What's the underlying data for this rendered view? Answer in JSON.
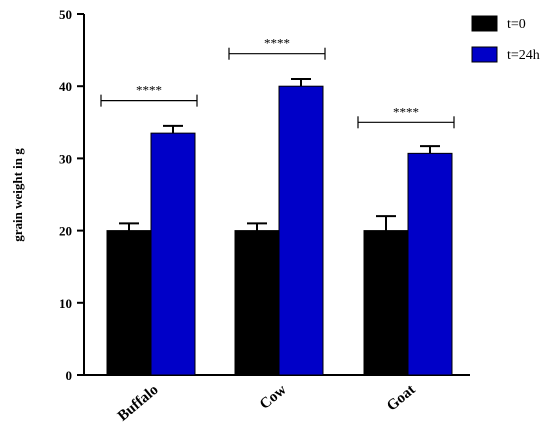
{
  "chart_data": {
    "type": "bar",
    "ylabel": "grain weight in g",
    "xlabel": "",
    "ylim": [
      0,
      50
    ],
    "yticks": [
      0,
      10,
      20,
      30,
      40,
      50
    ],
    "categories": [
      "Buffalo",
      "Cow",
      "Goat"
    ],
    "series": [
      {
        "name": "t=0",
        "values": [
          20,
          20,
          20
        ],
        "errors": [
          1,
          1,
          2
        ],
        "color": "#000000"
      },
      {
        "name": "t=24h",
        "values": [
          33.5,
          40,
          30.7
        ],
        "errors": [
          1,
          1,
          1
        ],
        "color": "#0000C8"
      }
    ],
    "significance": [
      {
        "category": "Buffalo",
        "label": "****",
        "y": 38
      },
      {
        "category": "Cow",
        "label": "****",
        "y": 44.5
      },
      {
        "category": "Goat",
        "label": "****",
        "y": 35
      }
    ],
    "legend_position": "top-right"
  }
}
